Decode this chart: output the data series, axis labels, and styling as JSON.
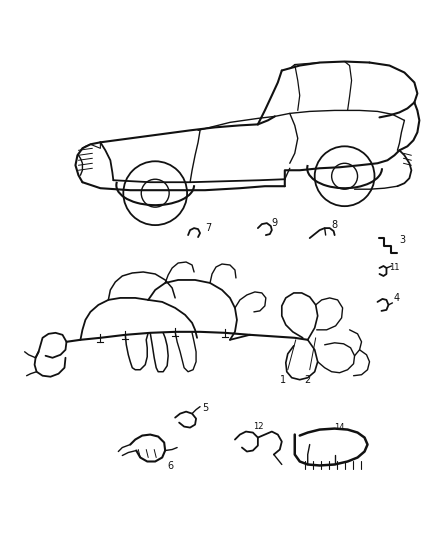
{
  "background_color": "#ffffff",
  "line_color": "#111111",
  "text_color": "#111111",
  "fig_width": 4.38,
  "fig_height": 5.33,
  "dpi": 100
}
